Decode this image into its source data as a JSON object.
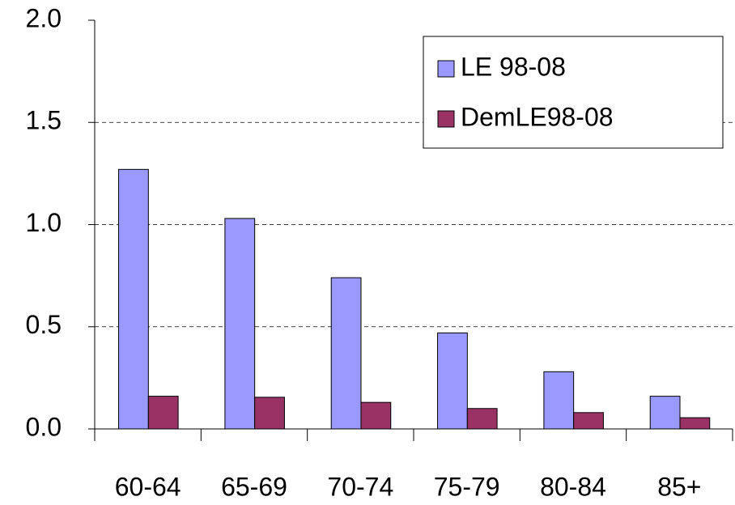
{
  "chart_data": {
    "type": "bar",
    "categories": [
      "60-64",
      "65-69",
      "70-74",
      "75-79",
      "80-84",
      "85+"
    ],
    "series": [
      {
        "name": "LE 98-08",
        "color": "#9999ff",
        "values": [
          1.27,
          1.03,
          0.74,
          0.47,
          0.28,
          0.16
        ]
      },
      {
        "name": "DemLE98-08",
        "color": "#993366",
        "values": [
          0.16,
          0.155,
          0.13,
          0.1,
          0.08,
          0.055
        ]
      }
    ],
    "ylim": [
      0,
      2
    ],
    "yticks": [
      {
        "value": 0,
        "label": "0.0"
      },
      0.5,
      {
        "value": 1,
        "label": "1.0"
      },
      1.5,
      {
        "value": 2,
        "label": "2.0"
      }
    ],
    "grid": true,
    "legend": "top-right"
  }
}
